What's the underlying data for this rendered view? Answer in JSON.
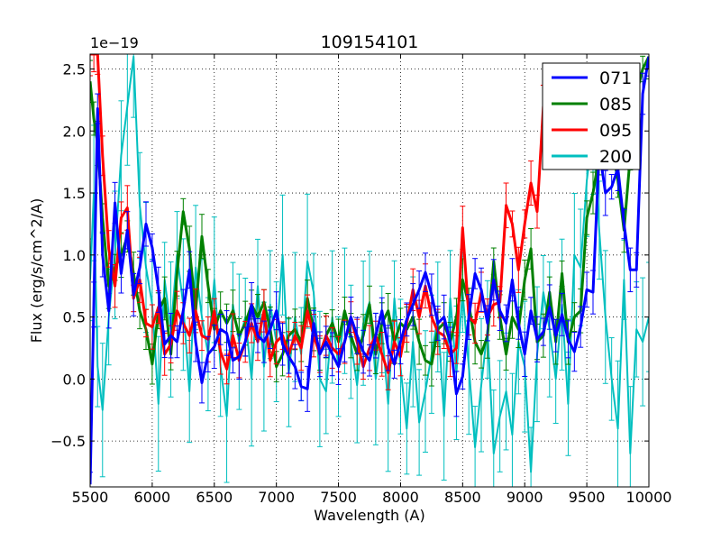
{
  "chart_data": {
    "type": "line",
    "title": "109154101",
    "xlabel": "Wavelength (A)",
    "ylabel": "Flux (erg/s/cm^2/A)",
    "offset_text": "1e−19",
    "xlim": [
      5500,
      10000
    ],
    "ylim": [
      -0.87,
      2.62
    ],
    "xticks": [
      5500,
      6000,
      6500,
      7000,
      7500,
      8000,
      8500,
      9000,
      9500,
      10000
    ],
    "xtick_labels": [
      "5500",
      "6000",
      "6500",
      "7000",
      "7500",
      "8000",
      "8500",
      "9000",
      "9500",
      "10000"
    ],
    "yticks": [
      -0.5,
      0.0,
      0.5,
      1.0,
      1.5,
      2.0,
      2.5
    ],
    "ytick_labels": [
      "−0.5",
      "0.0",
      "0.5",
      "1.0",
      "1.5",
      "2.0",
      "2.5"
    ],
    "grid": true,
    "legend_position": "top-right",
    "series": [
      {
        "name": "071",
        "color": "#0000ff",
        "x": [
          5500,
          5530,
          5560,
          5600,
          5650,
          5700,
          5750,
          5800,
          5850,
          5900,
          5950,
          6000,
          6050,
          6100,
          6150,
          6200,
          6250,
          6300,
          6350,
          6400,
          6450,
          6500,
          6550,
          6600,
          6650,
          6700,
          6750,
          6800,
          6850,
          6900,
          6950,
          7000,
          7050,
          7100,
          7150,
          7200,
          7250,
          7300,
          7350,
          7400,
          7450,
          7500,
          7550,
          7600,
          7650,
          7700,
          7750,
          7800,
          7850,
          7900,
          7950,
          8000,
          8050,
          8100,
          8150,
          8200,
          8250,
          8300,
          8350,
          8400,
          8450,
          8500,
          8550,
          8600,
          8650,
          8700,
          8750,
          8800,
          8850,
          8900,
          8950,
          9000,
          9050,
          9100,
          9150,
          9200,
          9250,
          9300,
          9350,
          9400,
          9450,
          9500,
          9550,
          9600,
          9650,
          9700,
          9750,
          9800,
          9850,
          9900,
          9950,
          10000
        ],
        "y": [
          -0.85,
          0.6,
          2.18,
          1.0,
          0.55,
          1.42,
          0.85,
          1.2,
          0.68,
          0.9,
          1.25,
          1.06,
          0.72,
          0.28,
          0.35,
          0.3,
          0.55,
          0.88,
          0.3,
          -0.03,
          0.2,
          0.26,
          0.4,
          0.37,
          0.15,
          0.18,
          0.3,
          0.6,
          0.35,
          0.3,
          0.4,
          0.55,
          0.28,
          0.18,
          0.1,
          -0.06,
          -0.08,
          0.45,
          0.2,
          0.3,
          0.2,
          0.1,
          0.3,
          0.5,
          0.35,
          0.22,
          0.15,
          0.35,
          0.55,
          0.25,
          0.12,
          0.3,
          0.48,
          0.6,
          0.72,
          0.86,
          0.68,
          0.45,
          0.5,
          0.3,
          -0.12,
          0.02,
          0.5,
          0.85,
          0.72,
          0.45,
          0.8,
          0.55,
          0.45,
          0.8,
          0.45,
          0.2,
          0.55,
          0.32,
          0.38,
          0.58,
          0.35,
          0.52,
          0.32,
          0.22,
          0.42,
          0.72,
          0.7,
          1.85,
          1.5,
          1.55,
          1.7,
          1.25,
          0.88,
          0.88,
          2.3,
          2.6
        ]
      },
      {
        "name": "085",
        "color": "#008000",
        "x": [
          5500,
          5530,
          5560,
          5600,
          5650,
          5700,
          5750,
          5800,
          5850,
          5900,
          5950,
          6000,
          6050,
          6100,
          6150,
          6200,
          6250,
          6300,
          6350,
          6400,
          6450,
          6500,
          6550,
          6600,
          6650,
          6700,
          6750,
          6800,
          6850,
          6900,
          6950,
          7000,
          7050,
          7100,
          7150,
          7200,
          7250,
          7300,
          7350,
          7400,
          7450,
          7500,
          7550,
          7600,
          7650,
          7700,
          7750,
          7800,
          7850,
          7900,
          7950,
          8000,
          8050,
          8100,
          8150,
          8200,
          8250,
          8300,
          8350,
          8400,
          8450,
          8500,
          8550,
          8600,
          8650,
          8700,
          8750,
          8800,
          8850,
          8900,
          8950,
          9000,
          9050,
          9100,
          9150,
          9200,
          9250,
          9300,
          9350,
          9400,
          9450,
          9500,
          9550,
          9600,
          9650,
          9700,
          9750,
          9800,
          9850,
          9900,
          9950,
          10000
        ],
        "y": [
          2.4,
          2.1,
          1.9,
          1.3,
          0.75,
          0.9,
          1.0,
          1.15,
          0.85,
          0.55,
          0.4,
          0.12,
          0.55,
          0.65,
          0.2,
          0.85,
          1.35,
          1.05,
          0.55,
          1.15,
          0.75,
          0.4,
          0.55,
          0.45,
          0.55,
          0.35,
          0.45,
          0.6,
          0.5,
          0.62,
          0.4,
          0.1,
          0.2,
          0.35,
          0.4,
          0.3,
          0.65,
          0.4,
          0.2,
          0.35,
          0.45,
          0.3,
          0.55,
          0.35,
          0.2,
          0.35,
          0.6,
          0.2,
          0.45,
          0.55,
          0.3,
          0.45,
          0.4,
          0.5,
          0.3,
          0.15,
          0.12,
          0.4,
          0.45,
          0.3,
          0.5,
          0.8,
          0.6,
          0.3,
          0.2,
          0.35,
          0.95,
          0.5,
          0.2,
          0.5,
          0.4,
          0.8,
          1.05,
          0.3,
          0.35,
          0.7,
          0.3,
          0.85,
          0.3,
          0.5,
          0.55,
          1.3,
          1.5,
          1.8,
          2.1,
          1.9,
          1.6,
          1.2,
          1.8,
          2.3,
          2.5,
          2.6
        ]
      },
      {
        "name": "095",
        "color": "#ff0000",
        "x": [
          5500,
          5530,
          5560,
          5600,
          5650,
          5700,
          5750,
          5800,
          5850,
          5900,
          5950,
          6000,
          6050,
          6100,
          6150,
          6200,
          6250,
          6300,
          6350,
          6400,
          6450,
          6500,
          6550,
          6600,
          6650,
          6700,
          6750,
          6800,
          6850,
          6900,
          6950,
          7000,
          7050,
          7100,
          7150,
          7200,
          7250,
          7300,
          7350,
          7400,
          7450,
          7500,
          7550,
          7600,
          7650,
          7700,
          7750,
          7800,
          7850,
          7900,
          7950,
          8000,
          8050,
          8100,
          8150,
          8200,
          8250,
          8300,
          8350,
          8400,
          8450,
          8500,
          8550,
          8600,
          8650,
          8700,
          8750,
          8800,
          8850,
          8900,
          8950,
          9000,
          9050,
          9100,
          9150
        ],
        "y": [
          2.62,
          2.62,
          2.62,
          1.8,
          1.05,
          0.75,
          1.3,
          1.38,
          0.65,
          0.8,
          0.45,
          0.42,
          0.58,
          0.2,
          0.28,
          0.55,
          0.45,
          0.35,
          0.55,
          0.35,
          0.32,
          0.55,
          0.22,
          0.08,
          0.35,
          0.15,
          0.3,
          0.45,
          0.3,
          0.55,
          0.15,
          0.3,
          0.35,
          0.2,
          0.35,
          0.25,
          0.55,
          0.35,
          0.2,
          0.35,
          0.25,
          0.2,
          0.3,
          0.5,
          0.3,
          0.1,
          0.25,
          0.35,
          0.2,
          0.05,
          0.3,
          0.18,
          0.45,
          0.72,
          0.5,
          0.75,
          0.5,
          0.38,
          0.35,
          0.2,
          0.25,
          1.22,
          0.5,
          0.45,
          0.7,
          0.5,
          0.6,
          0.62,
          1.4,
          1.25,
          0.88,
          1.25,
          1.58,
          1.35,
          2.2
        ]
      },
      {
        "name": "200",
        "color": "#00bfbf",
        "x": [
          5500,
          5530,
          5560,
          5600,
          5650,
          5700,
          5750,
          5800,
          5850,
          5900,
          5950,
          6000,
          6050,
          6100,
          6150,
          6200,
          6250,
          6300,
          6350,
          6400,
          6450,
          6500,
          6550,
          6600,
          6650,
          6700,
          6750,
          6800,
          6850,
          6900,
          6950,
          7000,
          7050,
          7100,
          7150,
          7200,
          7250,
          7300,
          7350,
          7400,
          7450,
          7500,
          7550,
          7600,
          7650,
          7700,
          7750,
          7800,
          7850,
          7900,
          7950,
          8000,
          8050,
          8100,
          8150,
          8200,
          8250,
          8300,
          8350,
          8400,
          8450,
          8500,
          8550,
          8600,
          8650,
          8700,
          8750,
          8800,
          8850,
          8900,
          8950,
          9000,
          9050,
          9100,
          9150,
          9200,
          9250,
          9300,
          9350,
          9400,
          9450,
          9500,
          9550,
          9600,
          9650,
          9700,
          9750,
          9800,
          9850,
          9900,
          9950,
          10000
        ],
        "y": [
          0.8,
          1.5,
          0.1,
          -0.25,
          0.5,
          1.0,
          1.8,
          2.2,
          2.6,
          1.4,
          0.9,
          0.6,
          -0.2,
          0.8,
          0.4,
          1.0,
          0.6,
          -0.1,
          0.9,
          0.5,
          0.2,
          0.8,
          0.1,
          -0.3,
          0.6,
          0.3,
          0.5,
          0.0,
          0.75,
          0.1,
          0.6,
          0.3,
          1.0,
          0.05,
          0.5,
          0.2,
          0.95,
          0.7,
          0.0,
          -0.1,
          0.5,
          0.1,
          0.55,
          0.3,
          -0.05,
          0.45,
          0.62,
          0.0,
          0.4,
          -0.2,
          0.65,
          0.1,
          -0.4,
          0.3,
          -0.35,
          -0.1,
          0.2,
          0.5,
          -0.3,
          0.65,
          0.05,
          0.7,
          0.1,
          -0.55,
          -0.05,
          0.4,
          -0.6,
          -0.3,
          -0.1,
          -0.45,
          0.3,
          0.1,
          -0.75,
          0.2,
          0.7,
          0.4,
          0.0,
          0.6,
          -0.2,
          1.0,
          0.9,
          1.6,
          2.0,
          1.2,
          0.5,
          0.0,
          -0.4,
          0.8,
          -0.6,
          0.4,
          0.3,
          0.5
        ]
      }
    ]
  }
}
